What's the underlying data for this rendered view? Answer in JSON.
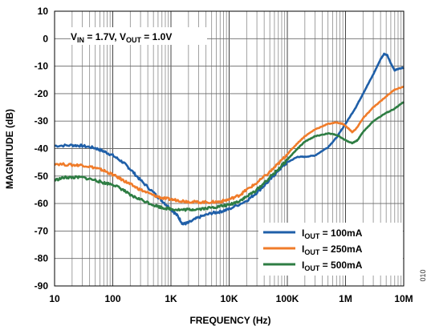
{
  "figure_id": "010",
  "conditions": {
    "vin_main": "V",
    "vin_sub": "IN",
    "vin_val": " = 1.7V, ",
    "vout_main": "V",
    "vout_sub": "OUT",
    "vout_val": " = 1.0V"
  },
  "chart_data": {
    "type": "line",
    "title": "",
    "xlabel": "FREQUENCY (Hz)",
    "ylabel": "MAGNITUDE (dB)",
    "x_scale": "log",
    "xlim": [
      10,
      10000000
    ],
    "ylim": [
      -90,
      10
    ],
    "grid": true,
    "legend_position": "bottom-right",
    "x_ticks": [
      10,
      100,
      1000,
      10000,
      100000,
      1000000,
      10000000
    ],
    "x_tick_labels": [
      "10",
      "100",
      "1K",
      "10K",
      "100K",
      "1M",
      "10M"
    ],
    "y_ticks": [
      10,
      0,
      -10,
      -20,
      -30,
      -40,
      -50,
      -60,
      -70,
      -80,
      -90
    ],
    "y_tick_labels": [
      "10",
      "0",
      "-10",
      "-20",
      "-30",
      "-40",
      "-50",
      "-60",
      "-70",
      "-80",
      "-90"
    ],
    "series": [
      {
        "label_main": "I",
        "label_sub": "OUT",
        "label_val": " = 100mA",
        "color": "#1f5fa8",
        "x": [
          10,
          20,
          30,
          50,
          70,
          100,
          150,
          200,
          300,
          500,
          700,
          1000,
          1300,
          1600,
          2000,
          3000,
          5000,
          7000,
          10000,
          20000,
          30000,
          50000,
          70000,
          100000,
          150000,
          200000,
          300000,
          500000,
          700000,
          1000000,
          1500000,
          2000000,
          3000000,
          4000000,
          4600000,
          5200000,
          6000000,
          7000000,
          8000000,
          10000000
        ],
        "y": [
          -39,
          -38.8,
          -39,
          -39.8,
          -41,
          -42.5,
          -45,
          -47.5,
          -51.5,
          -56,
          -59,
          -62,
          -64.5,
          -67.5,
          -67,
          -65,
          -63.5,
          -63,
          -62,
          -59,
          -56,
          -51.5,
          -48,
          -45,
          -43,
          -43,
          -42.5,
          -39.5,
          -36,
          -31,
          -25,
          -20,
          -13,
          -7.5,
          -5.5,
          -6,
          -9,
          -11.5,
          -11,
          -10.5
        ]
      },
      {
        "label_main": "I",
        "label_sub": "OUT",
        "label_val": " = 250mA",
        "color": "#f07c2a",
        "x": [
          10,
          20,
          30,
          50,
          70,
          100,
          150,
          200,
          300,
          500,
          700,
          1000,
          1500,
          2000,
          3000,
          5000,
          7000,
          10000,
          15000,
          20000,
          30000,
          50000,
          70000,
          100000,
          150000,
          200000,
          300000,
          500000,
          700000,
          900000,
          1100000,
          1300000,
          1500000,
          2000000,
          3000000,
          5000000,
          7000000,
          10000000
        ],
        "y": [
          -45.5,
          -46,
          -46,
          -47,
          -48,
          -49.5,
          -51.5,
          -53,
          -55,
          -57,
          -58,
          -58.5,
          -59,
          -59.3,
          -59.5,
          -59.5,
          -59.3,
          -58.5,
          -57,
          -55,
          -52.5,
          -48.5,
          -45.5,
          -42,
          -38,
          -35.5,
          -33,
          -31,
          -30.5,
          -31,
          -32.5,
          -34,
          -33,
          -29,
          -25,
          -21,
          -18.5,
          -17.5
        ]
      },
      {
        "label_main": "I",
        "label_sub": "OUT",
        "label_val": " = 500mA",
        "color": "#2e7d43",
        "x": [
          10,
          15,
          20,
          30,
          50,
          70,
          100,
          150,
          200,
          300,
          500,
          700,
          1000,
          1500,
          2000,
          3000,
          5000,
          7000,
          10000,
          15000,
          20000,
          30000,
          50000,
          70000,
          100000,
          150000,
          200000,
          300000,
          500000,
          700000,
          1000000,
          1300000,
          1600000,
          2000000,
          3000000,
          5000000,
          7000000,
          10000000
        ],
        "y": [
          -51.5,
          -50.5,
          -50.5,
          -50.5,
          -51.5,
          -52.5,
          -53,
          -55,
          -57,
          -58.5,
          -60.5,
          -61.5,
          -62,
          -62.3,
          -62.2,
          -62,
          -61.5,
          -61,
          -60.5,
          -59,
          -57.5,
          -55,
          -50.5,
          -47.5,
          -44,
          -40,
          -37.5,
          -35.5,
          -34.5,
          -35,
          -37,
          -38,
          -37,
          -34,
          -30,
          -27,
          -25.5,
          -23
        ]
      }
    ]
  }
}
